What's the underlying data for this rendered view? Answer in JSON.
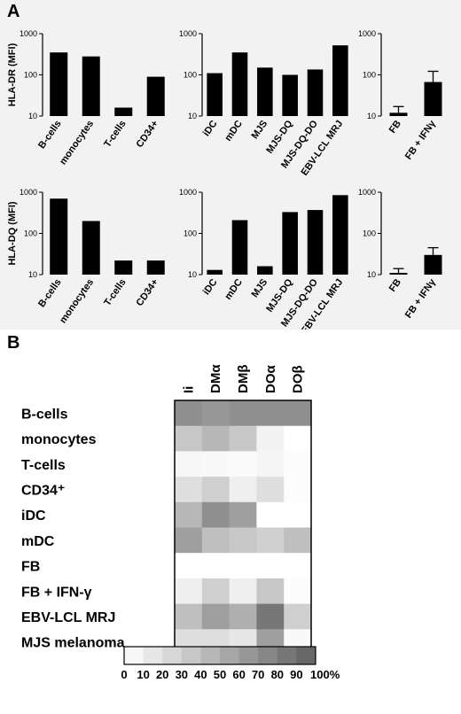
{
  "panel_a": {
    "label": "A"
  },
  "panel_b": {
    "label": "B"
  },
  "chart_data": [
    {
      "type": "bar",
      "panel": "A",
      "ylabel": "HLA-DR (MFI)",
      "yscale": "log",
      "ylim": [
        10,
        1000
      ],
      "yticks": [
        "10",
        "100",
        "1000"
      ],
      "categories": [
        "B-cells",
        "monocytes",
        "T-cells",
        "CD34+"
      ],
      "values": [
        350,
        280,
        16,
        90
      ],
      "errors": [
        0,
        0,
        0,
        0
      ]
    },
    {
      "type": "bar",
      "panel": "A",
      "ylabel": "",
      "yscale": "log",
      "ylim": [
        10,
        1000
      ],
      "yticks": [
        "10",
        "100",
        "1000"
      ],
      "categories": [
        "iDC",
        "mDC",
        "MJS",
        "MJS-DQ",
        "MJS-DQ-DO",
        "EBV-LCL MRJ"
      ],
      "values": [
        110,
        350,
        150,
        100,
        135,
        520
      ],
      "errors": [
        0,
        0,
        0,
        0,
        0,
        0
      ]
    },
    {
      "type": "bar",
      "panel": "A",
      "ylabel": "",
      "yscale": "log",
      "ylim": [
        10,
        1000
      ],
      "yticks": [
        "10",
        "100",
        "1000"
      ],
      "categories": [
        "FB",
        "FB + IFNγ"
      ],
      "values": [
        12,
        67
      ],
      "errors": [
        5,
        55
      ]
    },
    {
      "type": "bar",
      "panel": "A",
      "ylabel": "HLA-DQ (MFI)",
      "yscale": "log",
      "ylim": [
        10,
        1000
      ],
      "yticks": [
        "10",
        "100",
        "1000"
      ],
      "categories": [
        "B-cells",
        "monocytes",
        "T-cells",
        "CD34+"
      ],
      "values": [
        700,
        200,
        22,
        22
      ],
      "errors": [
        0,
        0,
        0,
        0
      ]
    },
    {
      "type": "bar",
      "panel": "A",
      "ylabel": "",
      "yscale": "log",
      "ylim": [
        10,
        1000
      ],
      "yticks": [
        "10",
        "100",
        "1000"
      ],
      "categories": [
        "iDC",
        "mDC",
        "MJS",
        "MJS-DQ",
        "MJS-DQ-DO",
        "EBV-LCL MRJ"
      ],
      "values": [
        13,
        210,
        16,
        330,
        370,
        850
      ],
      "errors": [
        0,
        0,
        0,
        0,
        0,
        0
      ]
    },
    {
      "type": "bar",
      "panel": "A",
      "ylabel": "",
      "yscale": "log",
      "ylim": [
        10,
        1000
      ],
      "yticks": [
        "10",
        "100",
        "1000"
      ],
      "categories": [
        "FB",
        "FB + IFNγ"
      ],
      "values": [
        11,
        30
      ],
      "errors": [
        3,
        15
      ]
    },
    {
      "type": "heatmap",
      "panel": "B",
      "columns": [
        "Ii",
        "DMα",
        "DMβ",
        "DOα",
        "DOβ"
      ],
      "rows": [
        "B-cells",
        "monocytes",
        "T-cells",
        "CD34⁺",
        "iDC",
        "mDC",
        "FB",
        "FB + IFN-γ",
        "EBV-LCL MRJ",
        "MJS melanoma"
      ],
      "values": [
        [
          70,
          65,
          70,
          70,
          70
        ],
        [
          35,
          45,
          35,
          8,
          0
        ],
        [
          5,
          4,
          3,
          6,
          2
        ],
        [
          20,
          30,
          10,
          20,
          2
        ],
        [
          45,
          70,
          60,
          0,
          0
        ],
        [
          60,
          40,
          35,
          30,
          40
        ],
        [
          0,
          0,
          0,
          0,
          0
        ],
        [
          10,
          30,
          10,
          35,
          2
        ],
        [
          40,
          60,
          50,
          85,
          30
        ],
        [
          20,
          20,
          15,
          60,
          4
        ]
      ],
      "scale": {
        "ticks": [
          "0",
          "10",
          "20",
          "30",
          "40",
          "50",
          "60",
          "70",
          "80",
          "90",
          "100%"
        ],
        "min": 0,
        "max": 100
      }
    }
  ]
}
